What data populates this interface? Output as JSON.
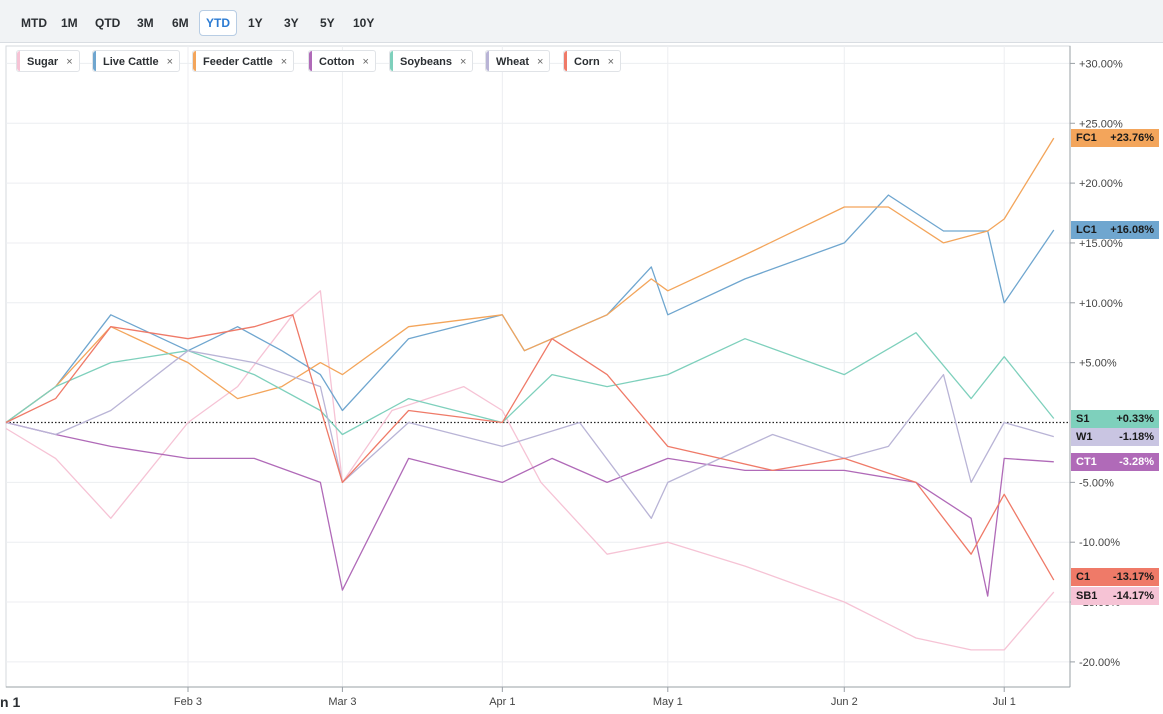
{
  "toolbar": {
    "ranges": [
      "MTD",
      "1M",
      "QTD",
      "3M",
      "6M",
      "YTD",
      "1Y",
      "3Y",
      "5Y",
      "10Y"
    ],
    "active": "YTD"
  },
  "legend": [
    {
      "name": "Sugar",
      "color": "#f6c3d5"
    },
    {
      "name": "Live Cattle",
      "color": "#6fa6cf"
    },
    {
      "name": "Feeder Cattle",
      "color": "#f3a55b"
    },
    {
      "name": "Cotton",
      "color": "#b06ab8"
    },
    {
      "name": "Soybeans",
      "color": "#7ed0bc"
    },
    {
      "name": "Wheat",
      "color": "#b9b4d6"
    },
    {
      "name": "Corn",
      "color": "#ef7a68"
    }
  ],
  "legend_close": "×",
  "corner_label": "n 1",
  "end_tags": [
    {
      "code": "FC1",
      "value": "+23.76%",
      "color": "#f3a55b"
    },
    {
      "code": "LC1",
      "value": "+16.08%",
      "color": "#6fa6cf"
    },
    {
      "code": "S1",
      "value": "+0.33%",
      "color": "#7ed0bc"
    },
    {
      "code": "W1",
      "value": "-1.18%",
      "color": "#c9c5e2"
    },
    {
      "code": "CT1",
      "value": "-3.28%",
      "color": "#b06ab8"
    },
    {
      "code": "C1",
      "value": "-13.17%",
      "color": "#ef7a68"
    },
    {
      "code": "SB1",
      "value": "-14.17%",
      "color": "#f6c3d5"
    }
  ],
  "chart_data": {
    "type": "line",
    "ylim": [
      -21,
      30.5
    ],
    "x_ticks": [
      "Feb 3",
      "Mar 3",
      "Apr 1",
      "May 1",
      "Jun 2",
      "Jul 1"
    ],
    "y_ticks": [
      {
        "v": 30,
        "label": "+30.00%"
      },
      {
        "v": 25,
        "label": "+25.00%"
      },
      {
        "v": 20,
        "label": "+20.00%"
      },
      {
        "v": 15,
        "label": "+15.00%"
      },
      {
        "v": 10,
        "label": "+10.00%"
      },
      {
        "v": 5,
        "label": "+5.00%"
      },
      {
        "v": -5,
        "label": "-5.00%"
      },
      {
        "v": -10,
        "label": "-10.00%"
      },
      {
        "v": -15,
        "label": "-15.00%"
      },
      {
        "v": -20,
        "label": "-20.00%"
      }
    ],
    "series": [
      {
        "name": "Sugar",
        "code": "SB1",
        "color": "#f6c3d5",
        "x": [
          "2025-01-01",
          "2025-01-10",
          "2025-01-20",
          "2025-02-03",
          "2025-02-12",
          "2025-02-22",
          "2025-02-27",
          "2025-03-03",
          "2025-03-12",
          "2025-03-25",
          "2025-04-01",
          "2025-04-08",
          "2025-04-20",
          "2025-05-01",
          "2025-05-15",
          "2025-06-02",
          "2025-06-15",
          "2025-06-25",
          "2025-07-01",
          "2025-07-10"
        ],
        "y": [
          -0.5,
          -3,
          -8,
          0,
          3,
          9,
          11,
          -5,
          1,
          3,
          1,
          -5,
          -11,
          -10,
          -12,
          -15,
          -18,
          -19,
          -19,
          -14.17
        ]
      },
      {
        "name": "Live Cattle",
        "code": "LC1",
        "color": "#6fa6cf",
        "x": [
          "2025-01-01",
          "2025-01-10",
          "2025-01-20",
          "2025-02-03",
          "2025-02-12",
          "2025-02-20",
          "2025-02-27",
          "2025-03-03",
          "2025-03-15",
          "2025-04-01",
          "2025-04-05",
          "2025-04-20",
          "2025-04-28",
          "2025-05-01",
          "2025-05-15",
          "2025-06-02",
          "2025-06-10",
          "2025-06-20",
          "2025-06-28",
          "2025-07-01",
          "2025-07-10"
        ],
        "y": [
          0,
          3,
          9,
          6,
          8,
          6,
          4,
          1,
          7,
          9,
          6,
          9,
          13,
          9,
          12,
          15,
          19,
          16,
          16,
          10,
          16.08
        ]
      },
      {
        "name": "Feeder Cattle",
        "code": "FC1",
        "color": "#f3a55b",
        "x": [
          "2025-01-01",
          "2025-01-10",
          "2025-01-20",
          "2025-02-03",
          "2025-02-12",
          "2025-02-20",
          "2025-02-27",
          "2025-03-03",
          "2025-03-15",
          "2025-04-01",
          "2025-04-05",
          "2025-04-20",
          "2025-04-28",
          "2025-05-01",
          "2025-05-15",
          "2025-06-02",
          "2025-06-10",
          "2025-06-20",
          "2025-06-28",
          "2025-07-01",
          "2025-07-10"
        ],
        "y": [
          0,
          3,
          8,
          5,
          2,
          3,
          5,
          4,
          8,
          9,
          6,
          9,
          12,
          11,
          14,
          18,
          18,
          15,
          16,
          17,
          23.76
        ]
      },
      {
        "name": "Cotton",
        "code": "CT1",
        "color": "#b06ab8",
        "x": [
          "2025-01-01",
          "2025-01-10",
          "2025-01-20",
          "2025-02-03",
          "2025-02-15",
          "2025-02-27",
          "2025-03-03",
          "2025-03-15",
          "2025-04-01",
          "2025-04-10",
          "2025-04-20",
          "2025-05-01",
          "2025-05-15",
          "2025-06-02",
          "2025-06-15",
          "2025-06-25",
          "2025-06-28",
          "2025-07-01",
          "2025-07-10"
        ],
        "y": [
          0,
          -1,
          -2,
          -3,
          -3,
          -5,
          -14,
          -3,
          -5,
          -3,
          -5,
          -3,
          -4,
          -4,
          -5,
          -8,
          -14.5,
          -3,
          -3.28
        ]
      },
      {
        "name": "Soybeans",
        "code": "S1",
        "color": "#7ed0bc",
        "x": [
          "2025-01-01",
          "2025-01-10",
          "2025-01-20",
          "2025-02-03",
          "2025-02-15",
          "2025-02-27",
          "2025-03-03",
          "2025-03-15",
          "2025-04-01",
          "2025-04-10",
          "2025-04-20",
          "2025-05-01",
          "2025-05-15",
          "2025-06-02",
          "2025-06-15",
          "2025-06-25",
          "2025-07-01",
          "2025-07-10"
        ],
        "y": [
          0,
          3,
          5,
          6,
          4,
          1,
          -1,
          2,
          0,
          4,
          3,
          4,
          7,
          4,
          7.5,
          2,
          5.5,
          0.33
        ]
      },
      {
        "name": "Wheat",
        "code": "W1",
        "color": "#b9b4d6",
        "x": [
          "2025-01-01",
          "2025-01-10",
          "2025-01-20",
          "2025-02-03",
          "2025-02-15",
          "2025-02-27",
          "2025-03-03",
          "2025-03-15",
          "2025-04-01",
          "2025-04-15",
          "2025-04-28",
          "2025-05-01",
          "2025-05-20",
          "2025-06-02",
          "2025-06-10",
          "2025-06-20",
          "2025-06-25",
          "2025-07-01",
          "2025-07-10"
        ],
        "y": [
          0,
          -1,
          1,
          6,
          5,
          3,
          -5,
          0,
          -2,
          0,
          -8,
          -5,
          -1,
          -3,
          -2,
          4,
          -5,
          0,
          -1.18
        ]
      },
      {
        "name": "Corn",
        "code": "C1",
        "color": "#ef7a68",
        "x": [
          "2025-01-01",
          "2025-01-10",
          "2025-01-20",
          "2025-02-03",
          "2025-02-15",
          "2025-02-22",
          "2025-03-03",
          "2025-03-15",
          "2025-04-01",
          "2025-04-10",
          "2025-04-20",
          "2025-05-01",
          "2025-05-20",
          "2025-06-02",
          "2025-06-15",
          "2025-06-25",
          "2025-07-01",
          "2025-07-10"
        ],
        "y": [
          0,
          2,
          8,
          7,
          8,
          9,
          -5,
          1,
          0,
          7,
          4,
          -2,
          -4,
          -3,
          -5,
          -11,
          -6,
          -13.17
        ]
      }
    ]
  }
}
